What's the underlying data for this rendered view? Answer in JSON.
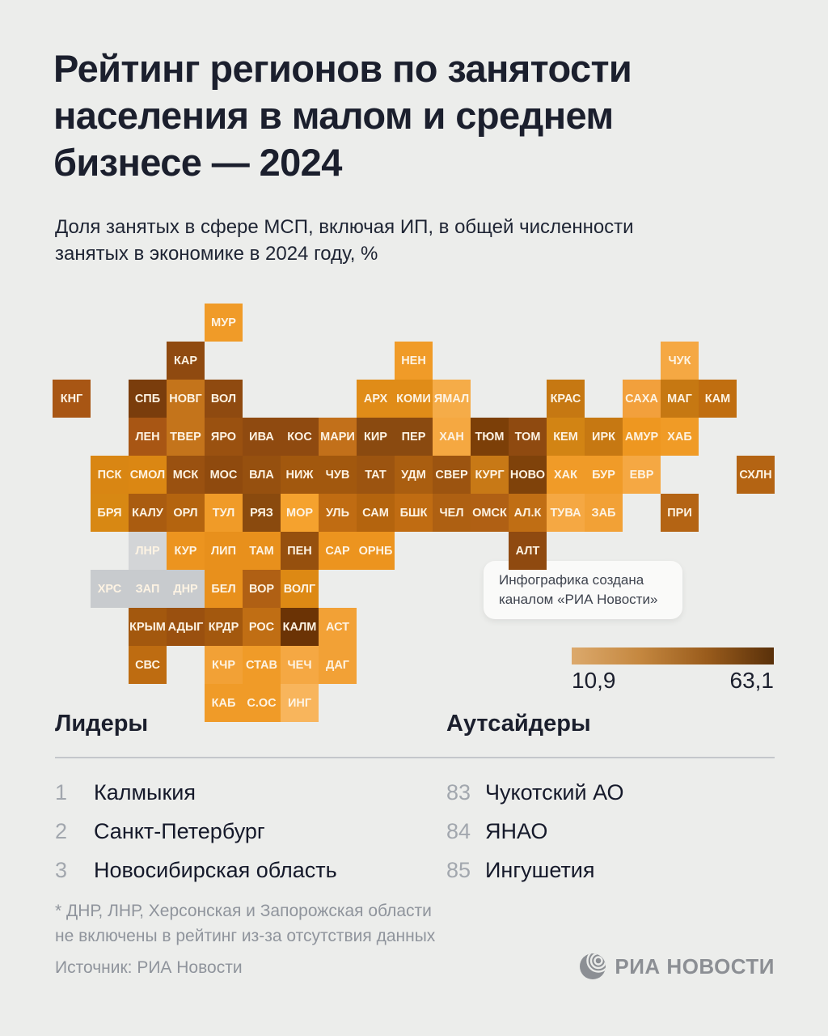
{
  "page": {
    "background": "#ECEDEB",
    "text_dark": "#1B1F2D",
    "text_muted": "#8F949C"
  },
  "header": {
    "title_lines": [
      "Рейтинг регионов по занятости",
      "населения в малом и среднем",
      "бизнесе — 2024"
    ],
    "subtitle_lines": [
      "Доля занятых в сфере МСП, включая ИП, в общей численности",
      "занятых в экономике в 2024 году, %"
    ]
  },
  "chart_data": {
    "type": "heatmap",
    "title": "Рейтинг регионов по занятости населения в малом и среднем бизнесе — 2024",
    "subtitle": "Доля занятых в сфере МСП, включая ИП, в общей численности занятых в экономике в 2024 году, %",
    "legend": {
      "min_label": "10,9",
      "max_label": "63,1",
      "gradient": [
        "#DCA96C",
        "#C58840",
        "#9A5C1C",
        "#59300A"
      ]
    },
    "excluded_regions": [
      "ДНР",
      "ЛНР",
      "ХРС",
      "ЗАП"
    ],
    "tiles": [
      {
        "label": "МУР",
        "col": 4,
        "row": 0,
        "color": "#F09B28"
      },
      {
        "label": "КАР",
        "col": 3,
        "row": 1,
        "color": "#8F4A10"
      },
      {
        "label": "НЕН",
        "col": 9,
        "row": 1,
        "color": "#F09B28"
      },
      {
        "label": "ЧУК",
        "col": 16,
        "row": 1,
        "color": "#F5A843"
      },
      {
        "label": "КНГ",
        "col": 0,
        "row": 2,
        "color": "#A85614"
      },
      {
        "label": "СПБ",
        "col": 2,
        "row": 2,
        "color": "#7A3D0C"
      },
      {
        "label": "НОВГ",
        "col": 3,
        "row": 2,
        "color": "#C4741B"
      },
      {
        "label": "ВОЛ",
        "col": 4,
        "row": 2,
        "color": "#8F4A10"
      },
      {
        "label": "АРХ",
        "col": 8,
        "row": 2,
        "color": "#E08C18"
      },
      {
        "label": "КОМИ",
        "col": 9,
        "row": 2,
        "color": "#E08C18"
      },
      {
        "label": "ЯМАЛ",
        "col": 10,
        "row": 2,
        "color": "#F5AC48"
      },
      {
        "label": "КРАС",
        "col": 13,
        "row": 2,
        "color": "#C67812"
      },
      {
        "label": "САХА",
        "col": 15,
        "row": 2,
        "color": "#F2A03C"
      },
      {
        "label": "МАГ",
        "col": 16,
        "row": 2,
        "color": "#C67812"
      },
      {
        "label": "КАМ",
        "col": 17,
        "row": 2,
        "color": "#C06E10"
      },
      {
        "label": "ЛЕН",
        "col": 2,
        "row": 3,
        "color": "#A85614"
      },
      {
        "label": "ТВЕР",
        "col": 3,
        "row": 3,
        "color": "#C4741B"
      },
      {
        "label": "ЯРО",
        "col": 4,
        "row": 3,
        "color": "#9A5110"
      },
      {
        "label": "ИВА",
        "col": 5,
        "row": 3,
        "color": "#8F4A10"
      },
      {
        "label": "КОС",
        "col": 6,
        "row": 3,
        "color": "#8F4A10"
      },
      {
        "label": "МАРИ",
        "col": 7,
        "row": 3,
        "color": "#C2701A"
      },
      {
        "label": "КИР",
        "col": 8,
        "row": 3,
        "color": "#8A4A10"
      },
      {
        "label": "ПЕР",
        "col": 9,
        "row": 3,
        "color": "#8A4A10"
      },
      {
        "label": "ХАН",
        "col": 10,
        "row": 3,
        "color": "#F5A841"
      },
      {
        "label": "ТЮМ",
        "col": 11,
        "row": 3,
        "color": "#7C3F08"
      },
      {
        "label": "ТОМ",
        "col": 12,
        "row": 3,
        "color": "#8F4A10"
      },
      {
        "label": "КЕМ",
        "col": 13,
        "row": 3,
        "color": "#D28414"
      },
      {
        "label": "ИРК",
        "col": 14,
        "row": 3,
        "color": "#C67812"
      },
      {
        "label": "АМУР",
        "col": 15,
        "row": 3,
        "color": "#EE9720"
      },
      {
        "label": "ХАБ",
        "col": 16,
        "row": 3,
        "color": "#F09B26"
      },
      {
        "label": "ПСК",
        "col": 1,
        "row": 4,
        "color": "#D98613"
      },
      {
        "label": "СМОЛ",
        "col": 2,
        "row": 4,
        "color": "#DB8713"
      },
      {
        "label": "МСК",
        "col": 3,
        "row": 4,
        "color": "#9A5110"
      },
      {
        "label": "МОС",
        "col": 4,
        "row": 4,
        "color": "#8F4A0E"
      },
      {
        "label": "ВЛА",
        "col": 5,
        "row": 4,
        "color": "#96500F"
      },
      {
        "label": "НИЖ",
        "col": 6,
        "row": 4,
        "color": "#A2580E"
      },
      {
        "label": "ЧУВ",
        "col": 7,
        "row": 4,
        "color": "#A2580E"
      },
      {
        "label": "ТАТ",
        "col": 8,
        "row": 4,
        "color": "#9C5410"
      },
      {
        "label": "УДМ",
        "col": 9,
        "row": 4,
        "color": "#AA5E10"
      },
      {
        "label": "СВЕР",
        "col": 10,
        "row": 4,
        "color": "#9C5410"
      },
      {
        "label": "КУРГ",
        "col": 11,
        "row": 4,
        "color": "#C87916"
      },
      {
        "label": "НОВО",
        "col": 12,
        "row": 4,
        "color": "#7F420A"
      },
      {
        "label": "ХАК",
        "col": 13,
        "row": 4,
        "color": "#F09B28"
      },
      {
        "label": "БУР",
        "col": 14,
        "row": 4,
        "color": "#F09B28"
      },
      {
        "label": "ЕВР",
        "col": 15,
        "row": 4,
        "color": "#F5A843"
      },
      {
        "label": "СХЛН",
        "col": 18,
        "row": 4,
        "color": "#B46413"
      },
      {
        "label": "БРЯ",
        "col": 1,
        "row": 5,
        "color": "#D88813"
      },
      {
        "label": "КАЛУ",
        "col": 2,
        "row": 5,
        "color": "#AA5C10"
      },
      {
        "label": "ОРЛ",
        "col": 3,
        "row": 5,
        "color": "#B4640F"
      },
      {
        "label": "ТУЛ",
        "col": 4,
        "row": 5,
        "color": "#F09B28"
      },
      {
        "label": "РЯЗ",
        "col": 5,
        "row": 5,
        "color": "#8A4A0E"
      },
      {
        "label": "МОР",
        "col": 6,
        "row": 5,
        "color": "#F5A22E"
      },
      {
        "label": "УЛЬ",
        "col": 7,
        "row": 5,
        "color": "#C06C12"
      },
      {
        "label": "САМ",
        "col": 8,
        "row": 5,
        "color": "#B4640E"
      },
      {
        "label": "БШК",
        "col": 9,
        "row": 5,
        "color": "#C06C12"
      },
      {
        "label": "ЧЕЛ",
        "col": 10,
        "row": 5,
        "color": "#AE6012"
      },
      {
        "label": "ОМСК",
        "col": 11,
        "row": 5,
        "color": "#B06014"
      },
      {
        "label": "АЛ.К",
        "col": 12,
        "row": 5,
        "color": "#C06E14"
      },
      {
        "label": "ТУВА",
        "col": 13,
        "row": 5,
        "color": "#F5A843"
      },
      {
        "label": "ЗАБ",
        "col": 14,
        "row": 5,
        "color": "#F2A136"
      },
      {
        "label": "ПРИ",
        "col": 16,
        "row": 5,
        "color": "#B46414"
      },
      {
        "label": "ЛНР",
        "col": 2,
        "row": 6,
        "color": "#D3D5D7"
      },
      {
        "label": "КУР",
        "col": 3,
        "row": 6,
        "color": "#EC941F"
      },
      {
        "label": "ЛИП",
        "col": 4,
        "row": 6,
        "color": "#E8901C"
      },
      {
        "label": "ТАМ",
        "col": 5,
        "row": 6,
        "color": "#E8901C"
      },
      {
        "label": "ПЕН",
        "col": 6,
        "row": 6,
        "color": "#96500E"
      },
      {
        "label": "САР",
        "col": 7,
        "row": 6,
        "color": "#EC941F"
      },
      {
        "label": "ОРНБ",
        "col": 8,
        "row": 6,
        "color": "#EC941F"
      },
      {
        "label": "АЛТ",
        "col": 12,
        "row": 6,
        "color": "#8F4A10"
      },
      {
        "label": "ХРС",
        "col": 1,
        "row": 7,
        "color": "#C8CBCE"
      },
      {
        "label": "ЗАП",
        "col": 2,
        "row": 7,
        "color": "#C8CBCE"
      },
      {
        "label": "ДНР",
        "col": 3,
        "row": 7,
        "color": "#C8CBCE"
      },
      {
        "label": "БЕЛ",
        "col": 4,
        "row": 7,
        "color": "#E8901C"
      },
      {
        "label": "ВОР",
        "col": 5,
        "row": 7,
        "color": "#B06014"
      },
      {
        "label": "ВОЛГ",
        "col": 6,
        "row": 7,
        "color": "#DD8914"
      },
      {
        "label": "КРЫМ",
        "col": 2,
        "row": 8,
        "color": "#A3580E"
      },
      {
        "label": "АДЫГ",
        "col": 3,
        "row": 8,
        "color": "#9A500F"
      },
      {
        "label": "КРДР",
        "col": 4,
        "row": 8,
        "color": "#A3580E"
      },
      {
        "label": "РОС",
        "col": 5,
        "row": 8,
        "color": "#C06E14"
      },
      {
        "label": "КАЛМ",
        "col": 6,
        "row": 8,
        "color": "#6B3305"
      },
      {
        "label": "АСТ",
        "col": 7,
        "row": 8,
        "color": "#F2A136"
      },
      {
        "label": "СВС",
        "col": 2,
        "row": 9,
        "color": "#BE6C11"
      },
      {
        "label": "КЧР",
        "col": 4,
        "row": 9,
        "color": "#F2A136"
      },
      {
        "label": "СТАВ",
        "col": 5,
        "row": 9,
        "color": "#F09B28"
      },
      {
        "label": "ЧЕЧ",
        "col": 6,
        "row": 9,
        "color": "#F5A843"
      },
      {
        "label": "ДАГ",
        "col": 7,
        "row": 9,
        "color": "#F2A136"
      },
      {
        "label": "КАБ",
        "col": 4,
        "row": 10,
        "color": "#F09B28"
      },
      {
        "label": "С.ОС",
        "col": 5,
        "row": 10,
        "color": "#F09B28"
      },
      {
        "label": "ИНГ",
        "col": 6,
        "row": 10,
        "color": "#F8B55C"
      }
    ]
  },
  "note_card": {
    "lines": [
      "Инфографика создана",
      "каналом «РИА Новости»"
    ]
  },
  "leaders": {
    "heading": "Лидеры",
    "items": [
      {
        "rank": "1",
        "name": "Калмыкия"
      },
      {
        "rank": "2",
        "name": "Санкт-Петербург"
      },
      {
        "rank": "3",
        "name": "Новосибирская область"
      }
    ]
  },
  "outsiders": {
    "heading": "Аутсайдеры",
    "items": [
      {
        "rank": "83",
        "name": "Чукотский АО"
      },
      {
        "rank": "84",
        "name": "ЯНАО"
      },
      {
        "rank": "85",
        "name": "Ингушетия"
      }
    ]
  },
  "footer": {
    "footnote_lines": [
      "* ДНР, ЛНР, Херсонская и Запорожская области",
      "не включены в рейтинг из-за отсутствия данных"
    ],
    "source": "Источник: РИА Новости",
    "logo_text": "РИА НОВОСТИ"
  }
}
